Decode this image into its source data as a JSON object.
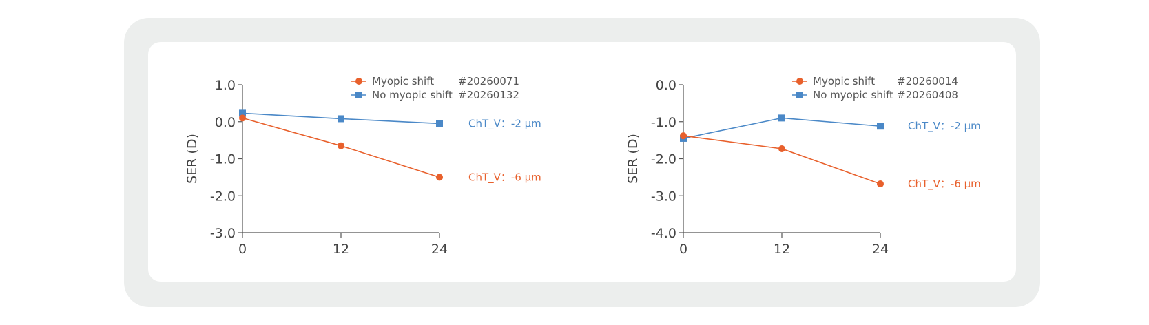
{
  "chart_data": [
    {
      "type": "line",
      "x": [
        0,
        12,
        24
      ],
      "xticks": [
        "0",
        "12",
        "24"
      ],
      "ylabel": "SER (D)",
      "ylim": [
        -3.0,
        1.0
      ],
      "yticks": [
        "1.0",
        "0.0",
        "-1.0",
        "-2.0",
        "-3.0"
      ],
      "ytick_values": [
        1.0,
        0.0,
        -1.0,
        -2.0,
        -3.0
      ],
      "grid": false,
      "legend_position": "top",
      "series": [
        {
          "name": "Myopic shift",
          "id_label": "#20260071",
          "values": [
            0.1,
            -0.65,
            -1.5
          ],
          "color": "#e8602c",
          "marker": "circle",
          "annotation": "ChT_V：-6 μm"
        },
        {
          "name": "No myopic shift",
          "id_label": "#20260132",
          "values": [
            0.23,
            0.08,
            -0.05
          ],
          "color": "#4a88c7",
          "marker": "square",
          "annotation": "ChT_V：-2 μm"
        }
      ]
    },
    {
      "type": "line",
      "x": [
        0,
        12,
        24
      ],
      "xticks": [
        "0",
        "12",
        "24"
      ],
      "ylabel": "SER (D)",
      "ylim": [
        -4.0,
        0.0
      ],
      "yticks": [
        "0.0",
        "-1.0",
        "-2.0",
        "-3.0",
        "-4.0"
      ],
      "ytick_values": [
        0.0,
        -1.0,
        -2.0,
        -3.0,
        -4.0
      ],
      "grid": false,
      "legend_position": "top",
      "series": [
        {
          "name": "Myopic shift",
          "id_label": "#20260014",
          "values": [
            -1.38,
            -1.73,
            -2.68
          ],
          "color": "#e8602c",
          "marker": "circle",
          "annotation": "ChT_V：-6 μm"
        },
        {
          "name": "No myopic shift",
          "id_label": "#20260408",
          "values": [
            -1.45,
            -0.9,
            -1.12
          ],
          "color": "#4a88c7",
          "marker": "square",
          "annotation": "ChT_V：-2 μm"
        }
      ]
    }
  ]
}
